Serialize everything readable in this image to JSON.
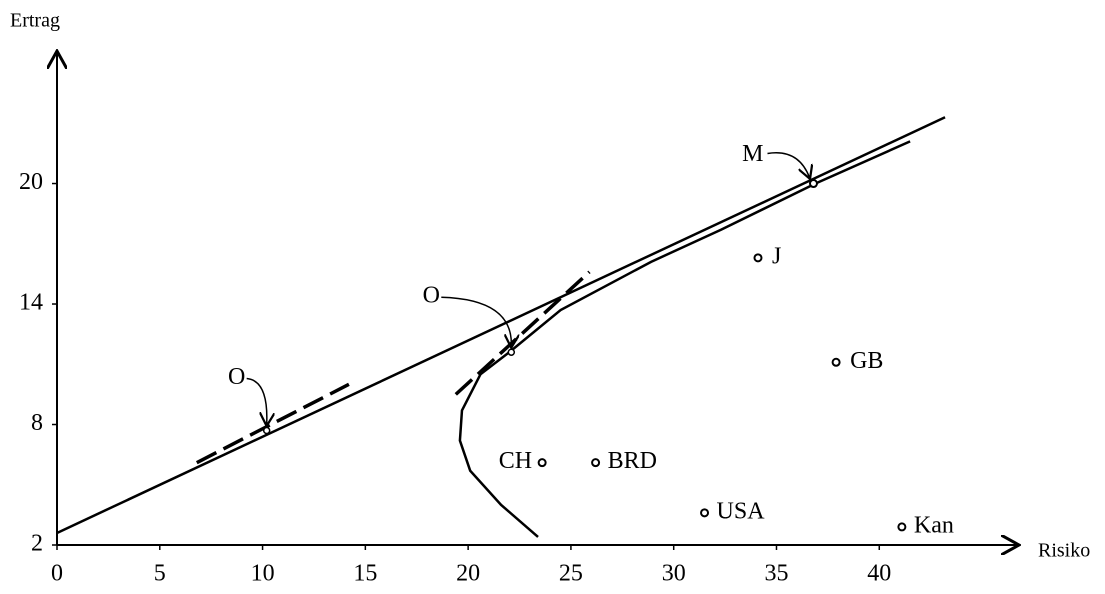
{
  "chart_data": {
    "type": "scatter",
    "x_label": "Risiko",
    "y_label": "Ertrag",
    "xlim": [
      0,
      46.7
    ],
    "ylim": [
      2,
      26.5
    ],
    "xticks": [
      0,
      5,
      10,
      15,
      20,
      25,
      30,
      35,
      40
    ],
    "yticks": [
      2,
      8,
      14,
      20
    ],
    "color": "#000000",
    "points": {
      "names": [
        "CH",
        "BRD",
        "USA",
        "Kan",
        "GB",
        "J",
        "M"
      ],
      "x": [
        23.6,
        26.2,
        31.5,
        41.1,
        37.9,
        34.1,
        36.8
      ],
      "y": [
        6.1,
        6.1,
        3.6,
        2.9,
        11.1,
        16.3,
        20.0
      ]
    },
    "lines": [
      {
        "dashed": false,
        "x": [
          0,
          43.2
        ],
        "y": [
          2.6,
          23.3
        ]
      },
      {
        "dashed": false,
        "x": [
          23.4,
          21.6,
          20.1,
          19.6,
          19.7,
          20.6,
          22.0,
          24.5,
          28.9,
          32.3,
          36.9,
          41.5
        ],
        "y": [
          2.4,
          4.0,
          5.7,
          7.2,
          8.7,
          10.5,
          11.6,
          13.7,
          16.1,
          17.7,
          20.0,
          22.1
        ]
      },
      {
        "dashed": true,
        "x": [
          6.8,
          14.2
        ],
        "y": [
          6.1,
          10.0
        ]
      },
      {
        "dashed": true,
        "x": [
          19.4,
          25.9
        ],
        "y": [
          9.5,
          15.6
        ]
      }
    ],
    "tangent_points": {
      "labels": [
        "O",
        "O"
      ],
      "x": [
        10.2,
        22.1
      ],
      "y": [
        7.7,
        11.6
      ]
    }
  }
}
